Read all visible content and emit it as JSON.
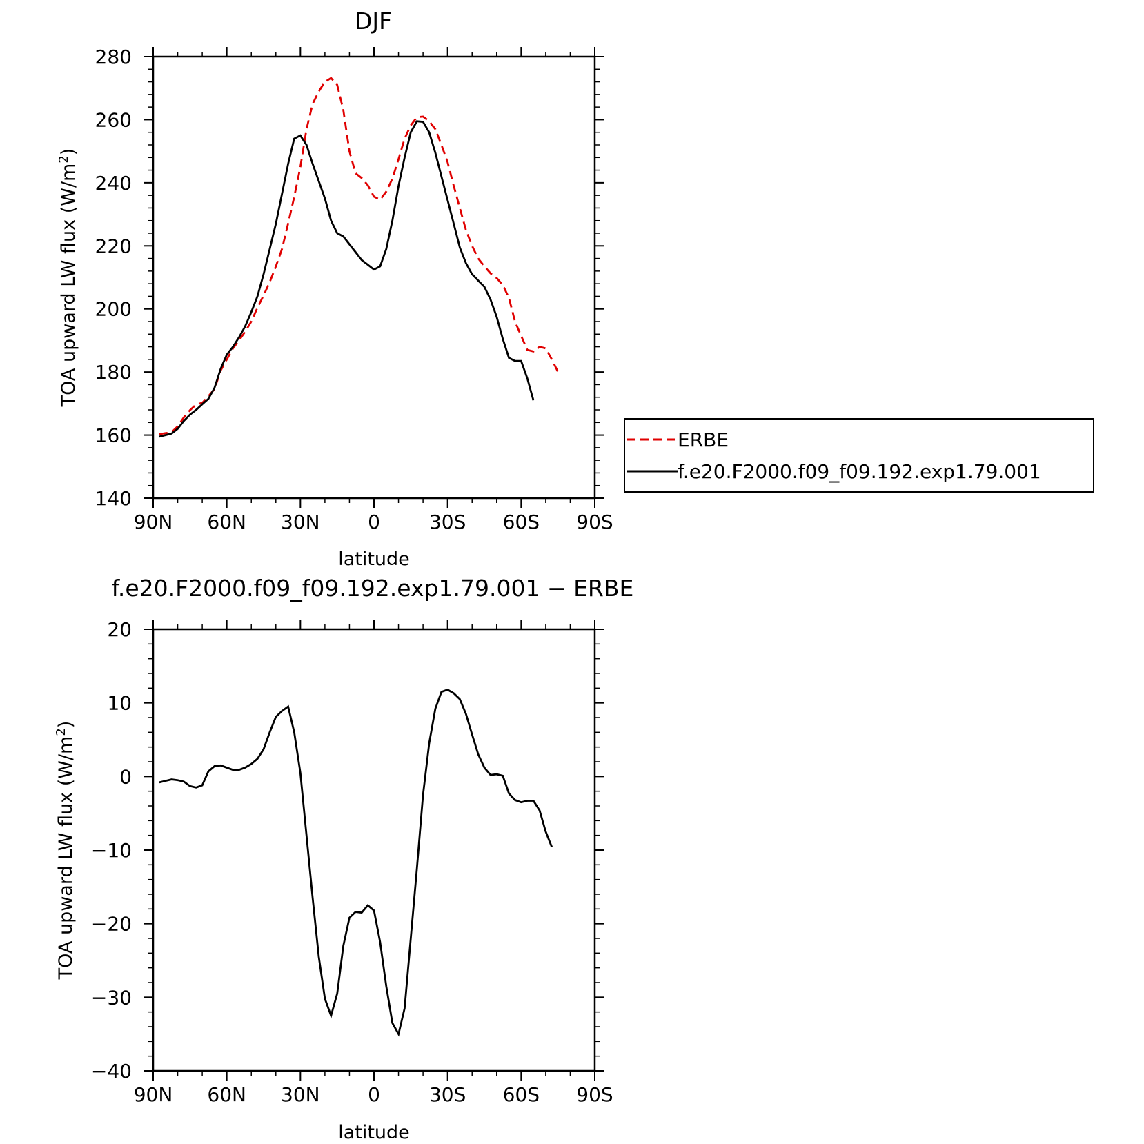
{
  "chart_data": [
    {
      "type": "line",
      "title": "DJF",
      "xlabel": "latitude",
      "ylabel_main": "TOA upward LW flux (W/m",
      "ylabel_sup": "2",
      "ylabel_close": ")",
      "xlim": [
        -90,
        90
      ],
      "ylim": [
        140,
        280
      ],
      "xticks": [
        -90,
        -60,
        -30,
        0,
        30,
        60,
        90
      ],
      "xtick_labels": [
        "90N",
        "60N",
        "30N",
        "0",
        "30S",
        "60S",
        "90S"
      ],
      "yticks": [
        140,
        160,
        180,
        200,
        220,
        240,
        260,
        280
      ],
      "ytick_labels": [
        "140",
        "160",
        "180",
        "200",
        "220",
        "240",
        "260",
        "280"
      ],
      "legend_position": "right",
      "series": [
        {
          "name": "ERBE",
          "color": "#e00000",
          "dash": "dashed",
          "points": [
            [
              -87.5,
              160.3
            ],
            [
              -85,
              160.6
            ],
            [
              -82.5,
              160.9
            ],
            [
              -80,
              162.8
            ],
            [
              -77.5,
              165.6
            ],
            [
              -75,
              167.9
            ],
            [
              -72.5,
              169.7
            ],
            [
              -70,
              170.2
            ],
            [
              -67.5,
              172.3
            ],
            [
              -65,
              174.6
            ],
            [
              -62.5,
              180.5
            ],
            [
              -60,
              184.0
            ],
            [
              -57.5,
              187.5
            ],
            [
              -55,
              190.0
            ],
            [
              -52.5,
              192.8
            ],
            [
              -50,
              196.0
            ],
            [
              -47.5,
              200.4
            ],
            [
              -45,
              204.3
            ],
            [
              -42.5,
              208.5
            ],
            [
              -40,
              213.5
            ],
            [
              -37.5,
              219.0
            ],
            [
              -35,
              227.1
            ],
            [
              -32.5,
              235.5
            ],
            [
              -30,
              245.0
            ],
            [
              -27.5,
              257.0
            ],
            [
              -25,
              265.0
            ],
            [
              -22.5,
              269.0
            ],
            [
              -20,
              272.0
            ],
            [
              -17.5,
              273.2
            ],
            [
              -15,
              271.0
            ],
            [
              -12.5,
              263.0
            ],
            [
              -10,
              250.0
            ],
            [
              -7.5,
              243.0
            ],
            [
              -5,
              241.5
            ],
            [
              -2.5,
              239.2
            ],
            [
              0,
              235.6
            ],
            [
              2.5,
              234.6
            ],
            [
              5,
              237.2
            ],
            [
              7.5,
              241.3
            ],
            [
              10,
              247.5
            ],
            [
              12.5,
              254.0
            ],
            [
              15,
              258.2
            ],
            [
              17.5,
              260.8
            ],
            [
              20,
              261.0
            ],
            [
              22.5,
              259.5
            ],
            [
              25,
              257.0
            ],
            [
              27.5,
              252.0
            ],
            [
              30,
              246.5
            ],
            [
              32.5,
              239.0
            ],
            [
              35,
              232.0
            ],
            [
              37.5,
              225.0
            ],
            [
              40,
              220.0
            ],
            [
              42.5,
              216.0
            ],
            [
              45,
              213.5
            ],
            [
              47.5,
              211.3
            ],
            [
              50,
              209.8
            ],
            [
              52.5,
              207.6
            ],
            [
              55,
              203.5
            ],
            [
              57.5,
              196.0
            ],
            [
              60,
              191.5
            ],
            [
              62.5,
              187.0
            ],
            [
              65,
              186.5
            ],
            [
              67.5,
              188.0
            ],
            [
              70,
              187.5
            ],
            [
              72.5,
              184.0
            ],
            [
              75,
              180.0
            ]
          ]
        },
        {
          "name": "f.e20.F2000.f09_f09.192.exp1.79.001",
          "color": "#000000",
          "dash": "solid",
          "points": [
            [
              -87.5,
              159.5
            ],
            [
              -85,
              160.0
            ],
            [
              -82.5,
              160.5
            ],
            [
              -80,
              162.0
            ],
            [
              -77.5,
              164.5
            ],
            [
              -75,
              166.5
            ],
            [
              -72.5,
              168.0
            ],
            [
              -70,
              169.8
            ],
            [
              -67.5,
              171.5
            ],
            [
              -65,
              175.0
            ],
            [
              -62.5,
              181.0
            ],
            [
              -60,
              185.5
            ],
            [
              -57.5,
              188.0
            ],
            [
              -55,
              191.0
            ],
            [
              -52.5,
              194.5
            ],
            [
              -50,
              199.0
            ],
            [
              -47.5,
              204.0
            ],
            [
              -45,
              211.0
            ],
            [
              -42.5,
              219.0
            ],
            [
              -40,
              227.0
            ],
            [
              -37.5,
              236.5
            ],
            [
              -35,
              246.0
            ],
            [
              -32.5,
              254.0
            ],
            [
              -30,
              255.0
            ],
            [
              -27.5,
              252.0
            ],
            [
              -25,
              246.0
            ],
            [
              -22.5,
              240.5
            ],
            [
              -20,
              235.0
            ],
            [
              -17.5,
              228.0
            ],
            [
              -15,
              224.0
            ],
            [
              -12.5,
              223.0
            ],
            [
              -10,
              220.5
            ],
            [
              -7.5,
              218.0
            ],
            [
              -5,
              215.5
            ],
            [
              -2.5,
              214.0
            ],
            [
              0,
              212.5
            ],
            [
              2.5,
              213.5
            ],
            [
              5,
              219.0
            ],
            [
              7.5,
              228.0
            ],
            [
              10,
              239.0
            ],
            [
              12.5,
              248.0
            ],
            [
              15,
              256.0
            ],
            [
              17.5,
              259.5
            ],
            [
              20,
              259.3
            ],
            [
              22.5,
              256.0
            ],
            [
              25,
              249.5
            ],
            [
              27.5,
              242.0
            ],
            [
              30,
              234.5
            ],
            [
              32.5,
              227.0
            ],
            [
              35,
              219.5
            ],
            [
              37.5,
              214.5
            ],
            [
              40,
              211.0
            ],
            [
              42.5,
              209.0
            ],
            [
              45,
              207.0
            ],
            [
              47.5,
              203.0
            ],
            [
              50,
              197.5
            ],
            [
              52.5,
              190.5
            ],
            [
              55,
              184.5
            ],
            [
              57.5,
              183.5
            ],
            [
              60,
              183.5
            ],
            [
              62.5,
              178.0
            ],
            [
              65,
              171.0
            ]
          ]
        }
      ]
    },
    {
      "type": "line",
      "title": "f.e20.F2000.f09_f09.192.exp1.79.001 − ERBE",
      "xlabel": "latitude",
      "ylabel_main": "TOA upward LW flux (W/m",
      "ylabel_sup": "2",
      "ylabel_close": ")",
      "xlim": [
        -90,
        90
      ],
      "ylim": [
        -40,
        20
      ],
      "xticks": [
        -90,
        -60,
        -30,
        0,
        30,
        60,
        90
      ],
      "xtick_labels": [
        "90N",
        "60N",
        "30N",
        "0",
        "30S",
        "60S",
        "90S"
      ],
      "yticks": [
        -40,
        -30,
        -20,
        -10,
        0,
        10,
        20
      ],
      "ytick_labels": [
        "−40",
        "−30",
        "−20",
        "−10",
        "0",
        "10",
        "20"
      ],
      "series": [
        {
          "color": "#000000",
          "dash": "solid",
          "points": [
            [
              -87.5,
              -0.8
            ],
            [
              -85,
              -0.6
            ],
            [
              -82.5,
              -0.4
            ],
            [
              -80,
              -0.5
            ],
            [
              -77.5,
              -0.7
            ],
            [
              -75,
              -1.3
            ],
            [
              -72.5,
              -1.5
            ],
            [
              -70,
              -1.2
            ],
            [
              -67.5,
              0.7
            ],
            [
              -65,
              1.4
            ],
            [
              -62.5,
              1.5
            ],
            [
              -60,
              1.2
            ],
            [
              -57.5,
              0.9
            ],
            [
              -55,
              0.9
            ],
            [
              -52.5,
              1.2
            ],
            [
              -50,
              1.7
            ],
            [
              -47.5,
              2.4
            ],
            [
              -45,
              3.7
            ],
            [
              -42.5,
              6.0
            ],
            [
              -40,
              8.1
            ],
            [
              -37.5,
              8.9
            ],
            [
              -35,
              9.5
            ],
            [
              -32.5,
              6.0
            ],
            [
              -30,
              0.5
            ],
            [
              -27.5,
              -8.0
            ],
            [
              -25,
              -16.5
            ],
            [
              -22.5,
              -24.5
            ],
            [
              -20,
              -30.2
            ],
            [
              -17.5,
              -32.5
            ],
            [
              -15,
              -29.5
            ],
            [
              -12.5,
              -23.0
            ],
            [
              -10,
              -19.2
            ],
            [
              -7.5,
              -18.4
            ],
            [
              -5,
              -18.5
            ],
            [
              -2.5,
              -17.5
            ],
            [
              0,
              -18.2
            ],
            [
              2.5,
              -22.5
            ],
            [
              5,
              -28.5
            ],
            [
              7.5,
              -33.5
            ],
            [
              10,
              -35.0
            ],
            [
              12.5,
              -31.5
            ],
            [
              15,
              -22.0
            ],
            [
              17.5,
              -12.5
            ],
            [
              20,
              -2.5
            ],
            [
              22.5,
              4.5
            ],
            [
              25,
              9.2
            ],
            [
              27.5,
              11.5
            ],
            [
              30,
              11.8
            ],
            [
              32.5,
              11.3
            ],
            [
              35,
              10.5
            ],
            [
              37.5,
              8.5
            ],
            [
              40,
              5.7
            ],
            [
              42.5,
              3.0
            ],
            [
              45,
              1.2
            ],
            [
              47.5,
              0.2
            ],
            [
              50,
              0.3
            ],
            [
              52.5,
              0.1
            ],
            [
              55,
              -2.3
            ],
            [
              57.5,
              -3.2
            ],
            [
              60,
              -3.5
            ],
            [
              62.5,
              -3.3
            ],
            [
              65,
              -3.3
            ],
            [
              67.5,
              -4.6
            ],
            [
              70,
              -7.5
            ],
            [
              72.5,
              -9.6
            ]
          ]
        }
      ]
    }
  ]
}
